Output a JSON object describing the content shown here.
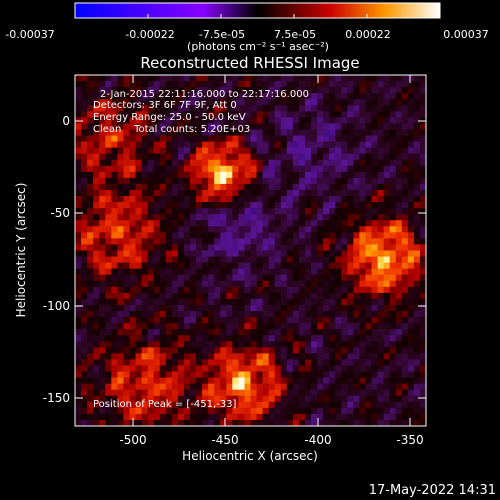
{
  "colorbar": {
    "ticks": [
      "-0.00037",
      "-0.00022",
      "-7.5e-05",
      "7.5e-05",
      "0.00022",
      "0.00037"
    ],
    "units_label": "(photons cm⁻² s⁻¹ asec⁻²)"
  },
  "plot": {
    "title": "Reconstructed RHESSI Image",
    "xlabel": "Heliocentric X (arcsec)",
    "ylabel": "Heliocentric Y (arcsec)",
    "x_ticks": [
      "-500",
      "-450",
      "-400",
      "-350"
    ],
    "y_ticks": [
      "0",
      "-50",
      "-100",
      "-150"
    ],
    "xlim": [
      -532,
      -342
    ],
    "ylim": [
      -170,
      22
    ]
  },
  "annotations": {
    "time_range": "2-Jan-2015 22:11:16.000 to 22:17:16.000",
    "detectors": "Detectors: 3F 6F 7F 9F, Att 0",
    "energy_range": "Energy Range: 25.0 - 50.0 keV",
    "clean_counts": "Clean    Total counts: 5.20E+03",
    "peak_position": "Position of Peak = [-451,-33]"
  },
  "footer": {
    "timestamp": "17-May-2022 14:31"
  },
  "colors": {
    "background": "#000000",
    "text": "#ffffff"
  }
}
